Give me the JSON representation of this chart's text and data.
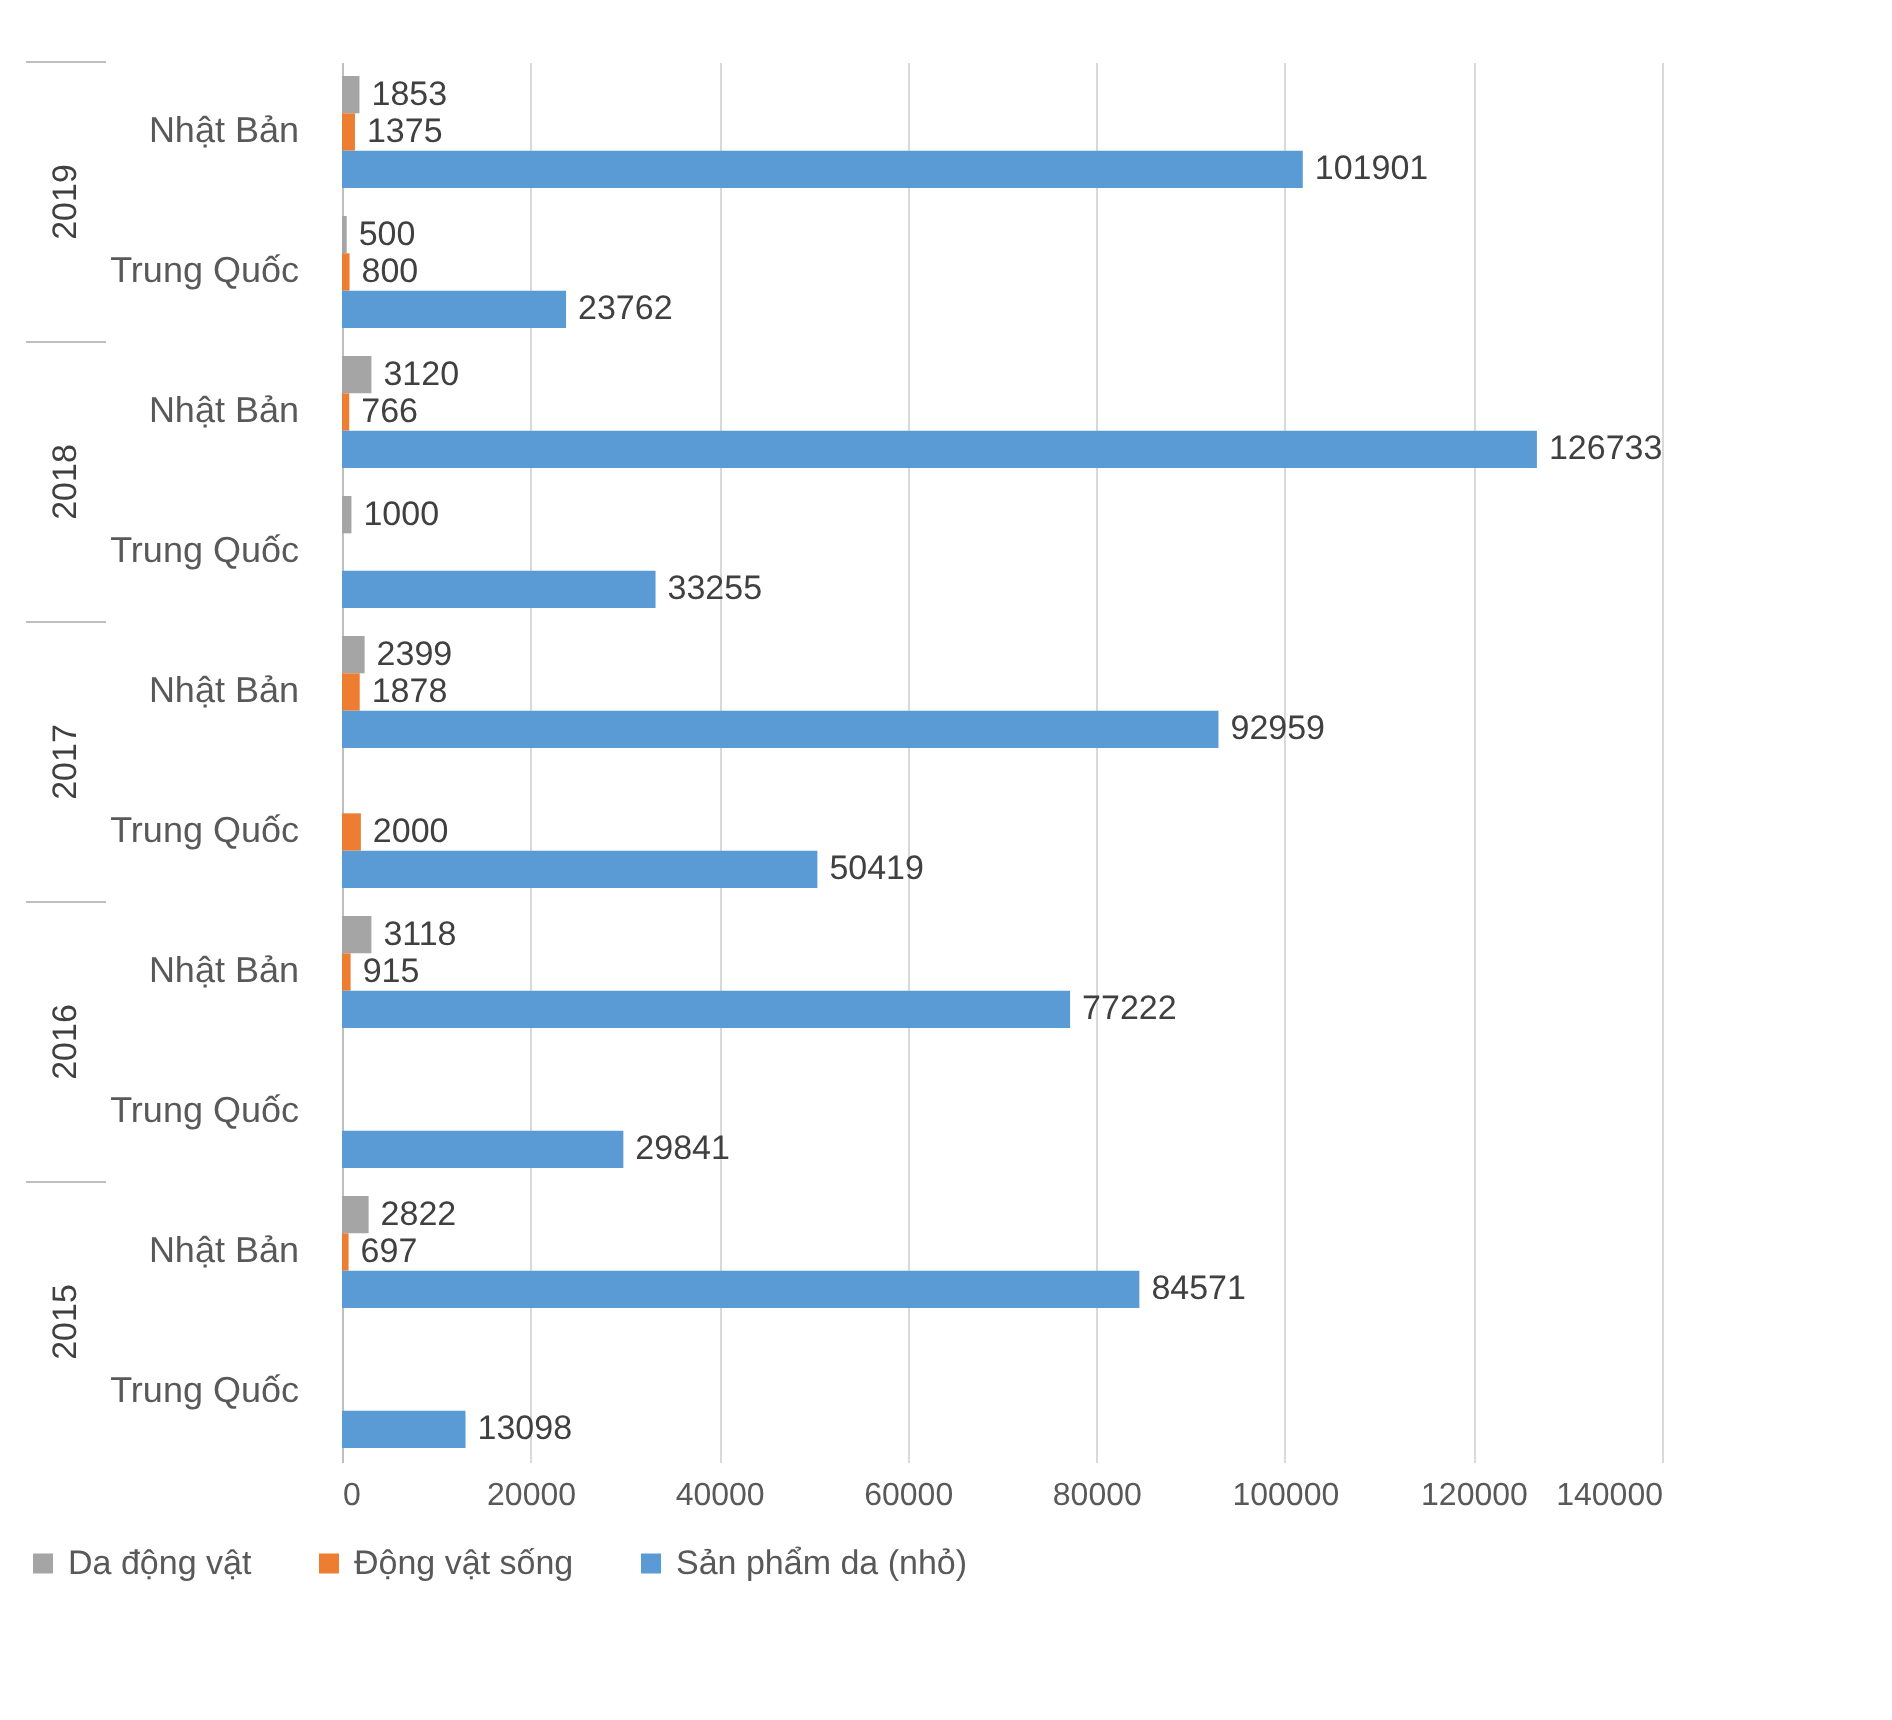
{
  "chart_data": {
    "type": "bar",
    "orientation": "horizontal",
    "categories": [
      "Nhật Bản",
      "Trung Quốc",
      "Nhật Bản",
      "Trung Quốc",
      "Nhật Bản",
      "Trung Quốc",
      "Nhật Bản",
      "Trung Quốc",
      "Nhật Bản",
      "Trung Quốc"
    ],
    "annotations": [
      "2019",
      "2018",
      "2017",
      "2016",
      "2015"
    ],
    "series": [
      {
        "name": "Da động vật",
        "color": "#a5a5a5",
        "values": [
          1853,
          500,
          3120,
          1000,
          2399,
          null,
          3118,
          null,
          2822,
          null
        ]
      },
      {
        "name": "Động vật sống",
        "color": "#ed7d31",
        "values": [
          1375,
          800,
          766,
          null,
          1878,
          2000,
          915,
          null,
          697,
          null
        ]
      },
      {
        "name": "Sản phẩm da (nhỏ)",
        "color": "#5b9bd5",
        "values": [
          101901,
          23762,
          126733,
          33255,
          92959,
          50419,
          77222,
          29841,
          84571,
          13098
        ]
      }
    ],
    "xlim": [
      0,
      140000
    ],
    "xticks": [
      0,
      20000,
      40000,
      60000,
      80000,
      100000,
      120000,
      140000
    ],
    "grid": "x",
    "data_labels": true,
    "legend": "bottom"
  }
}
